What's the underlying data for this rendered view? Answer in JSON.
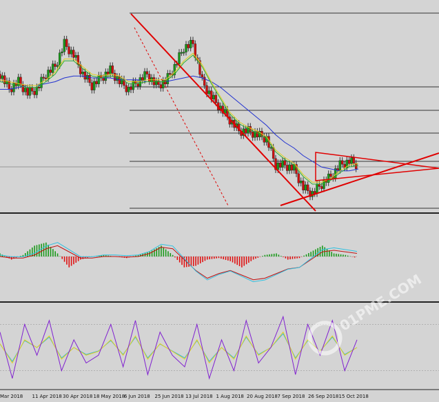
{
  "chart_data": {
    "type": "line",
    "x_tick_labels": [
      "Mar 2018",
      "11 Apr 2018",
      "30 Apr 2018",
      "18 May 2018",
      "6 Jun 2018",
      "25 Jun 2018",
      "13 Jul 2018",
      "1 Aug 2018",
      "20 Aug 2018",
      "7 Sep 2018",
      "26 Sep 2018",
      "15 Oct 2018"
    ],
    "panels": [
      {
        "name": "price",
        "series": [
          {
            "role": "price",
            "values": [
              0.7,
              0.62,
              0.66,
              0.6,
              0.62,
              0.7,
              0.74,
              0.86,
              0.8,
              0.7,
              0.64,
              0.68,
              0.72,
              0.66,
              0.62,
              0.66,
              0.7,
              0.64,
              0.66,
              0.74,
              0.84,
              0.86,
              0.66,
              0.58,
              0.52,
              0.46,
              0.4,
              0.4,
              0.38,
              0.36,
              0.22,
              0.22,
              0.2,
              0.1,
              0.07,
              0.12,
              0.16,
              0.22,
              0.24,
              0.22
            ]
          },
          {
            "role": "moving-average-fast",
            "values": [
              0.66,
              0.65,
              0.64,
              0.63,
              0.63,
              0.66,
              0.7,
              0.77,
              0.77,
              0.73,
              0.69,
              0.68,
              0.69,
              0.68,
              0.65,
              0.65,
              0.66,
              0.66,
              0.66,
              0.7,
              0.76,
              0.8,
              0.74,
              0.65,
              0.57,
              0.49,
              0.44,
              0.41,
              0.39,
              0.36,
              0.29,
              0.25,
              0.22,
              0.16,
              0.12,
              0.12,
              0.14,
              0.18,
              0.21,
              0.22
            ]
          },
          {
            "role": "moving-average-slow",
            "values": [
              0.62,
              0.62,
              0.63,
              0.64,
              0.64,
              0.65,
              0.66,
              0.68,
              0.69,
              0.69,
              0.68,
              0.68,
              0.68,
              0.67,
              0.67,
              0.67,
              0.66,
              0.66,
              0.66,
              0.67,
              0.68,
              0.69,
              0.68,
              0.66,
              0.63,
              0.59,
              0.55,
              0.51,
              0.47,
              0.43,
              0.38,
              0.34,
              0.31,
              0.27,
              0.24,
              0.21,
              0.2,
              0.19,
              0.19,
              0.2
            ]
          }
        ]
      },
      {
        "name": "macd",
        "series": [
          {
            "role": "histogram",
            "values": [
              0.1,
              -0.1,
              0.05,
              0.35,
              0.45,
              0.1,
              -0.35,
              -0.1,
              0.0,
              0.05,
              0.0,
              -0.05,
              0.05,
              0.15,
              0.35,
              0.05,
              -0.35,
              -0.3,
              -0.1,
              -0.05,
              -0.15,
              -0.35,
              -0.1,
              0.05,
              0.1,
              -0.1,
              -0.05,
              0.15,
              0.35,
              0.1,
              0.05,
              -0.05
            ]
          },
          {
            "role": "signal",
            "values": [
              0.0,
              -0.05,
              -0.05,
              0.05,
              0.25,
              0.35,
              0.15,
              -0.05,
              -0.05,
              0.0,
              0.0,
              -0.02,
              0.0,
              0.1,
              0.3,
              0.25,
              -0.1,
              -0.45,
              -0.7,
              -0.55,
              -0.45,
              -0.6,
              -0.75,
              -0.7,
              -0.55,
              -0.4,
              -0.35,
              -0.1,
              0.15,
              0.2,
              0.15,
              0.1
            ]
          }
        ]
      },
      {
        "name": "oscillator",
        "series": [
          {
            "role": "main",
            "values": [
              70,
              10,
              80,
              40,
              85,
              20,
              60,
              30,
              40,
              80,
              25,
              85,
              15,
              70,
              40,
              25,
              80,
              10,
              60,
              20,
              85,
              30,
              50,
              90,
              15,
              80,
              40,
              85,
              20,
              60
            ]
          },
          {
            "role": "signal",
            "values": [
              55,
              30,
              60,
              50,
              65,
              35,
              50,
              40,
              45,
              60,
              40,
              65,
              35,
              55,
              45,
              35,
              60,
              30,
              50,
              35,
              65,
              40,
              50,
              70,
              35,
              60,
              45,
              65,
              40,
              50
            ]
          }
        ]
      }
    ],
    "annotations": [
      "descending trendline",
      "ascending trendline",
      "triangle",
      "horizontal levels"
    ]
  },
  "watermark": {
    "brand": "01PME.COM"
  }
}
